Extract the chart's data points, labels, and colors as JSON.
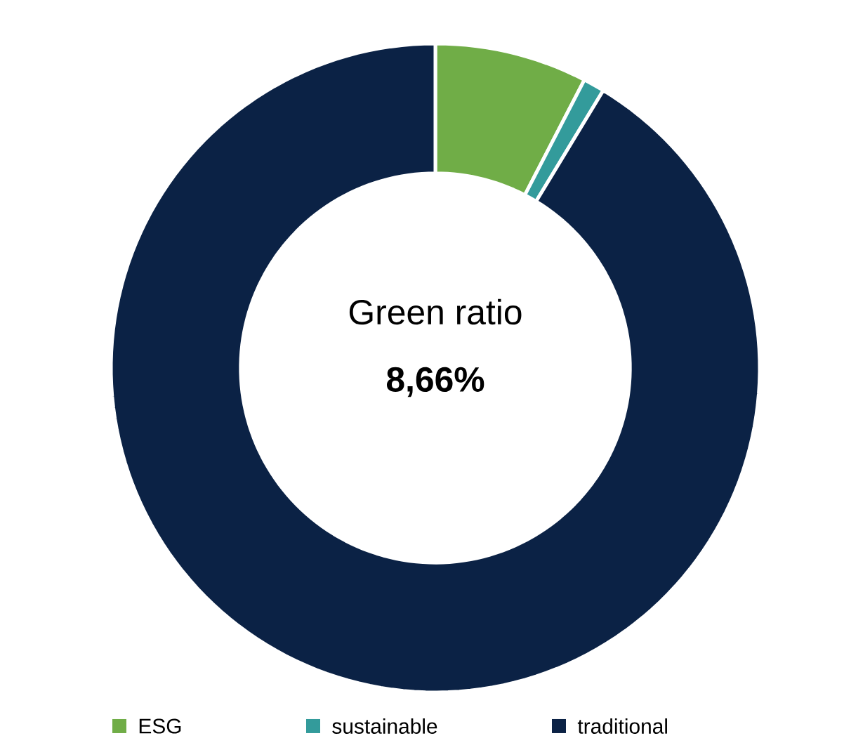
{
  "chart_data": {
    "type": "donut",
    "categories": [
      "ESG",
      "sustainable",
      "traditional"
    ],
    "values": [
      7.6,
      1.06,
      91.34
    ],
    "colors": [
      "#70ad47",
      "#339b9b",
      "#0b2245"
    ],
    "annotations": [
      "Green ratio",
      "**8,66%**"
    ],
    "legend": "bottom"
  }
}
